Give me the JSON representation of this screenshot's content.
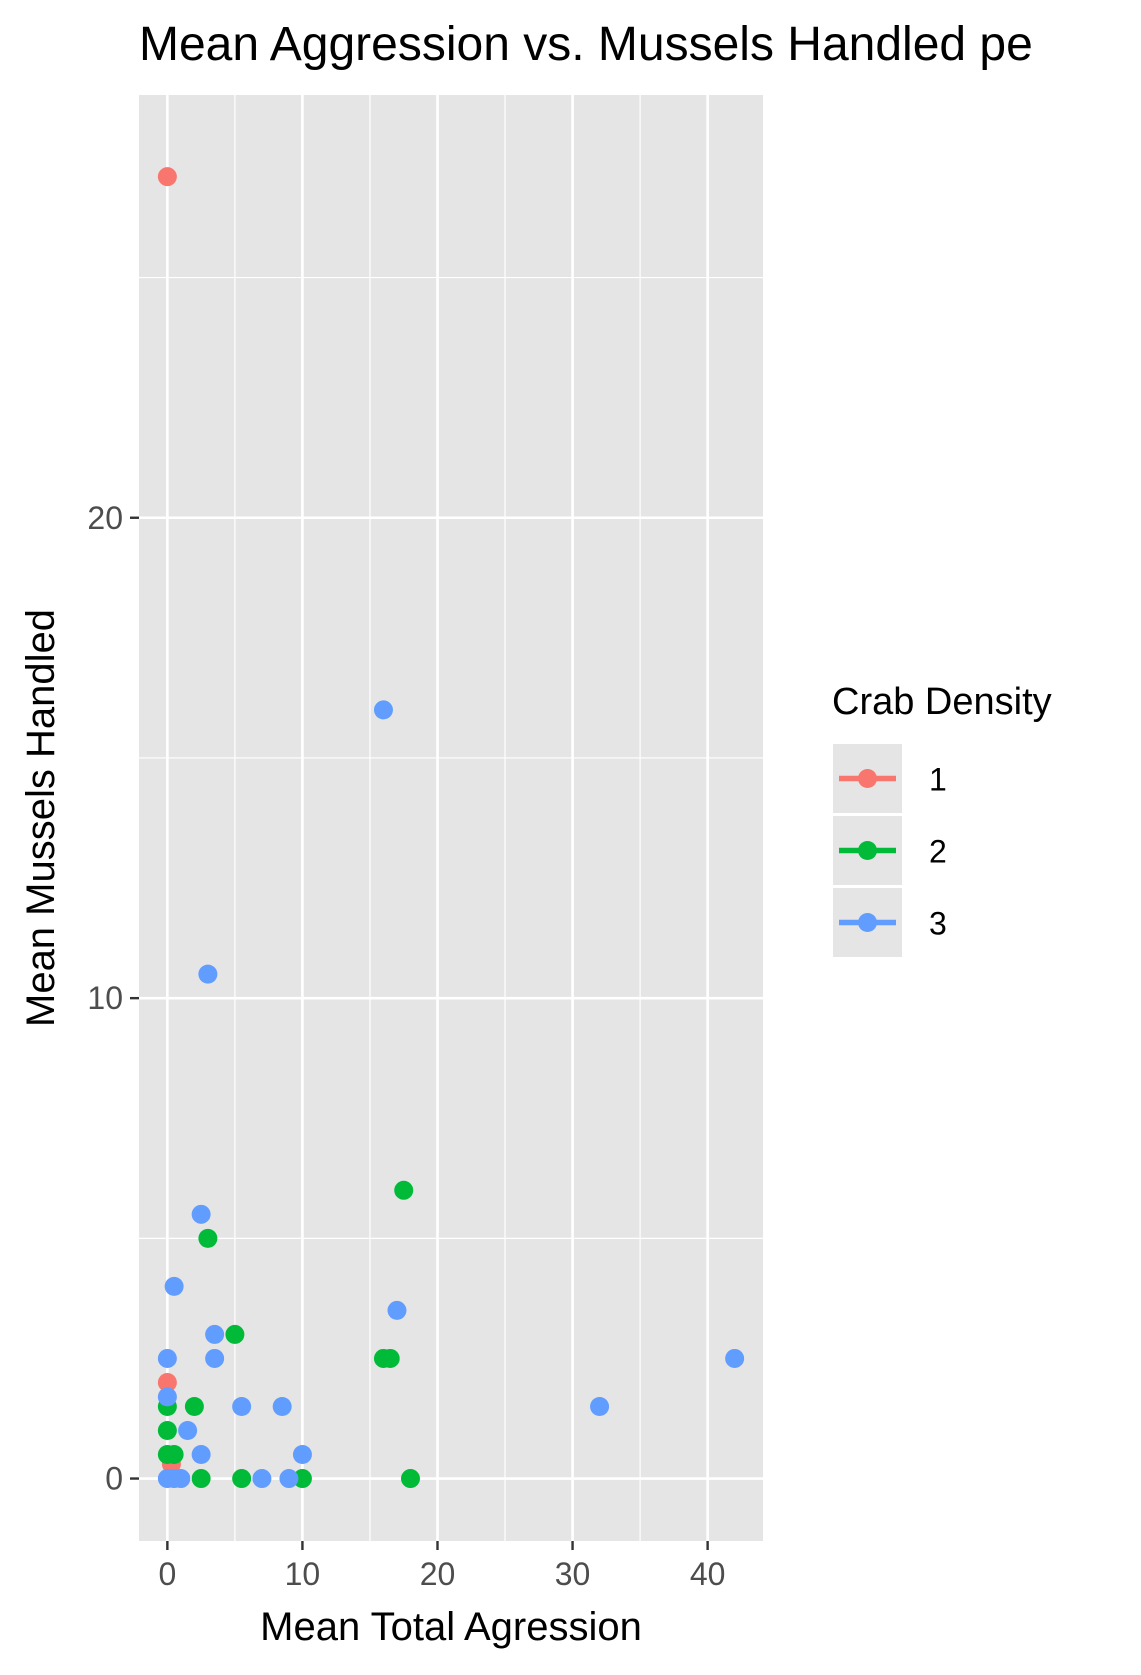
{
  "chart_data": {
    "type": "scatter",
    "title": "Mean Aggression vs. Mussels Handled pe",
    "xlabel": "Mean Total Agression",
    "ylabel": "Mean Mussels Handled",
    "xlim": [
      -2.1,
      44.1
    ],
    "ylim": [
      -1.3,
      28.8
    ],
    "x_ticks": [
      0,
      10,
      20,
      30,
      40
    ],
    "x_tick_labels": [
      "0",
      "10",
      "20",
      "30",
      "40"
    ],
    "y_ticks": [
      0,
      10,
      20
    ],
    "y_tick_labels": [
      "0",
      "10",
      "20"
    ],
    "x_minor_ticks": [
      5,
      15,
      25,
      35
    ],
    "y_minor_ticks": [
      5,
      15,
      25
    ],
    "grid": true,
    "panel_background": "#e5e5e5",
    "grid_color": "#ffffff",
    "legend": {
      "title": "Crab Density",
      "position": "right"
    },
    "series": [
      {
        "name": "1",
        "color": "#f8766d",
        "points": [
          {
            "x": 0,
            "y": 27.1
          },
          {
            "x": 0,
            "y": 2.0
          },
          {
            "x": 0.3,
            "y": 0.3
          }
        ]
      },
      {
        "name": "2",
        "color": "#00ba38",
        "points": [
          {
            "x": 17.5,
            "y": 6.0
          },
          {
            "x": 3.0,
            "y": 5.0
          },
          {
            "x": 5.0,
            "y": 3.0
          },
          {
            "x": 16.0,
            "y": 2.5
          },
          {
            "x": 16.5,
            "y": 2.5
          },
          {
            "x": 2.0,
            "y": 1.5
          },
          {
            "x": 0,
            "y": 1.5
          },
          {
            "x": 0,
            "y": 1.0
          },
          {
            "x": 0,
            "y": 0.5
          },
          {
            "x": 0.5,
            "y": 0.5
          },
          {
            "x": 2.5,
            "y": 0
          },
          {
            "x": 5.5,
            "y": 0
          },
          {
            "x": 10.0,
            "y": 0
          },
          {
            "x": 18.0,
            "y": 0
          }
        ]
      },
      {
        "name": "3",
        "color": "#619cff",
        "points": [
          {
            "x": 16.0,
            "y": 16.0
          },
          {
            "x": 3.0,
            "y": 10.5
          },
          {
            "x": 2.5,
            "y": 5.5
          },
          {
            "x": 0.5,
            "y": 4.0
          },
          {
            "x": 17.0,
            "y": 3.5
          },
          {
            "x": 3.5,
            "y": 3.0
          },
          {
            "x": 3.5,
            "y": 2.5
          },
          {
            "x": 0,
            "y": 2.5
          },
          {
            "x": 42.0,
            "y": 2.5
          },
          {
            "x": 0,
            "y": 1.7
          },
          {
            "x": 5.5,
            "y": 1.5
          },
          {
            "x": 8.5,
            "y": 1.5
          },
          {
            "x": 32.0,
            "y": 1.5
          },
          {
            "x": 1.5,
            "y": 1.0
          },
          {
            "x": 2.5,
            "y": 0.5
          },
          {
            "x": 10.0,
            "y": 0.5
          },
          {
            "x": 0,
            "y": 0
          },
          {
            "x": 0.5,
            "y": 0
          },
          {
            "x": 1.0,
            "y": 0
          },
          {
            "x": 7.0,
            "y": 0
          },
          {
            "x": 9.0,
            "y": 0
          }
        ]
      }
    ]
  }
}
